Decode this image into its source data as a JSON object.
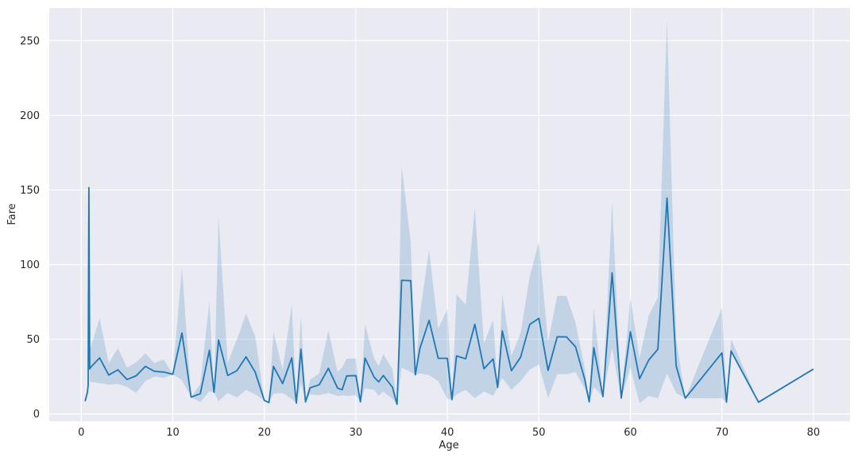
{
  "chart_data": {
    "type": "line",
    "title": "",
    "xlabel": "Age",
    "ylabel": "Fare",
    "xlim": [
      -3.5,
      84.0
    ],
    "ylim": [
      -5,
      272
    ],
    "xticks": [
      0,
      10,
      20,
      30,
      40,
      50,
      60,
      70,
      80
    ],
    "yticks": [
      0,
      50,
      100,
      150,
      200,
      250
    ],
    "grid": true,
    "legend": "none",
    "colors": {
      "background": "#eaeaf2",
      "grid": "#ffffff",
      "line": "#1f77b4",
      "band": "#1f77b4"
    },
    "series": [
      {
        "x": [
          0.42,
          0.67,
          0.75,
          0.83,
          0.92,
          1,
          2,
          3,
          4,
          5,
          6,
          7,
          8,
          9,
          10,
          11,
          12,
          13,
          14,
          14.5,
          15,
          16,
          17,
          18,
          19,
          20,
          20.5,
          21,
          22,
          23,
          23.5,
          24,
          24.5,
          25,
          26,
          27,
          28,
          28.5,
          29,
          30,
          30.5,
          31,
          32,
          32.5,
          33,
          34,
          34.5,
          35,
          36,
          36.5,
          37,
          38,
          39,
          40,
          40.5,
          41,
          42,
          43,
          44,
          45,
          45.5,
          46,
          47,
          48,
          49,
          50,
          51,
          52,
          53,
          54,
          55,
          55.5,
          56,
          57,
          58,
          59,
          60,
          61,
          62,
          63,
          64,
          65,
          66,
          70,
          70.5,
          71,
          74,
          80
        ],
        "y": [
          8.5,
          14.5,
          19.3,
          151.6,
          30,
          31,
          37.5,
          26,
          29.5,
          23,
          25.5,
          31.8,
          28.5,
          28,
          26.5,
          54.2,
          11.2,
          13.5,
          42.6,
          14.5,
          49.5,
          25.7,
          28.9,
          38.2,
          28,
          9,
          7.5,
          31.8,
          20.3,
          37.5,
          7.2,
          43.3,
          8,
          17.4,
          19.5,
          30.5,
          17.3,
          16.1,
          25.4,
          25.6,
          8,
          37.4,
          24.6,
          21.4,
          25.7,
          17.8,
          6.4,
          89.5,
          89.2,
          26.2,
          43.8,
          62.6,
          37.2,
          37.2,
          9.5,
          38.8,
          36.9,
          60,
          30.2,
          36.8,
          17.7,
          55.6,
          28.9,
          37.9,
          59.9,
          64,
          29.1,
          51.6,
          51.6,
          45,
          23.3,
          8,
          44.3,
          11.5,
          94.5,
          10.5,
          55,
          23.5,
          36,
          43.3,
          144.6,
          32.1,
          10.5,
          40.8,
          7.8,
          42.1,
          7.8,
          30
        ],
        "lower": [
          8.5,
          14.5,
          19.3,
          151.6,
          21.5,
          21.5,
          20.5,
          19.5,
          20,
          18,
          14,
          22,
          25,
          24,
          26.5,
          22.5,
          11.2,
          7.8,
          15,
          14.5,
          8.5,
          14,
          11,
          16,
          13,
          9,
          7.5,
          13.5,
          14,
          10,
          7.2,
          20.5,
          8,
          13,
          12.5,
          14,
          12,
          12.5,
          12,
          12.5,
          8,
          17,
          16,
          12,
          15,
          10,
          6.4,
          31,
          28,
          26.2,
          27,
          26,
          22,
          10,
          9.5,
          13,
          16,
          10.5,
          15,
          12,
          17.7,
          24,
          16,
          22,
          29.7,
          33,
          10.5,
          26.5,
          26.5,
          28,
          17,
          8,
          18,
          11.5,
          44,
          10.5,
          31,
          7,
          12,
          10.5,
          27,
          14,
          10.5,
          10.5,
          7.8,
          42.1,
          7.8,
          30
        ],
        "upper": [
          8.5,
          14.5,
          19.3,
          151.6,
          44,
          44,
          64,
          34,
          44,
          31,
          34.5,
          40.5,
          34,
          36.5,
          26.5,
          98,
          11.2,
          20,
          75,
          14.5,
          132,
          34,
          50,
          67,
          52,
          9,
          7.5,
          55,
          29.5,
          73,
          7.2,
          66,
          8,
          23,
          27,
          56,
          28,
          31,
          37,
          37,
          8,
          60,
          37,
          32,
          40,
          30,
          6.4,
          166,
          115,
          26.2,
          67,
          110,
          57,
          70,
          9.5,
          80,
          73,
          138,
          47,
          63,
          17.7,
          80,
          39,
          54,
          92,
          115,
          48,
          79,
          79,
          61,
          31,
          8,
          71,
          11.5,
          142,
          10.5,
          78,
          37,
          66,
          78,
          264,
          50,
          10.5,
          71,
          7.8,
          50,
          7.8,
          30
        ]
      }
    ]
  }
}
